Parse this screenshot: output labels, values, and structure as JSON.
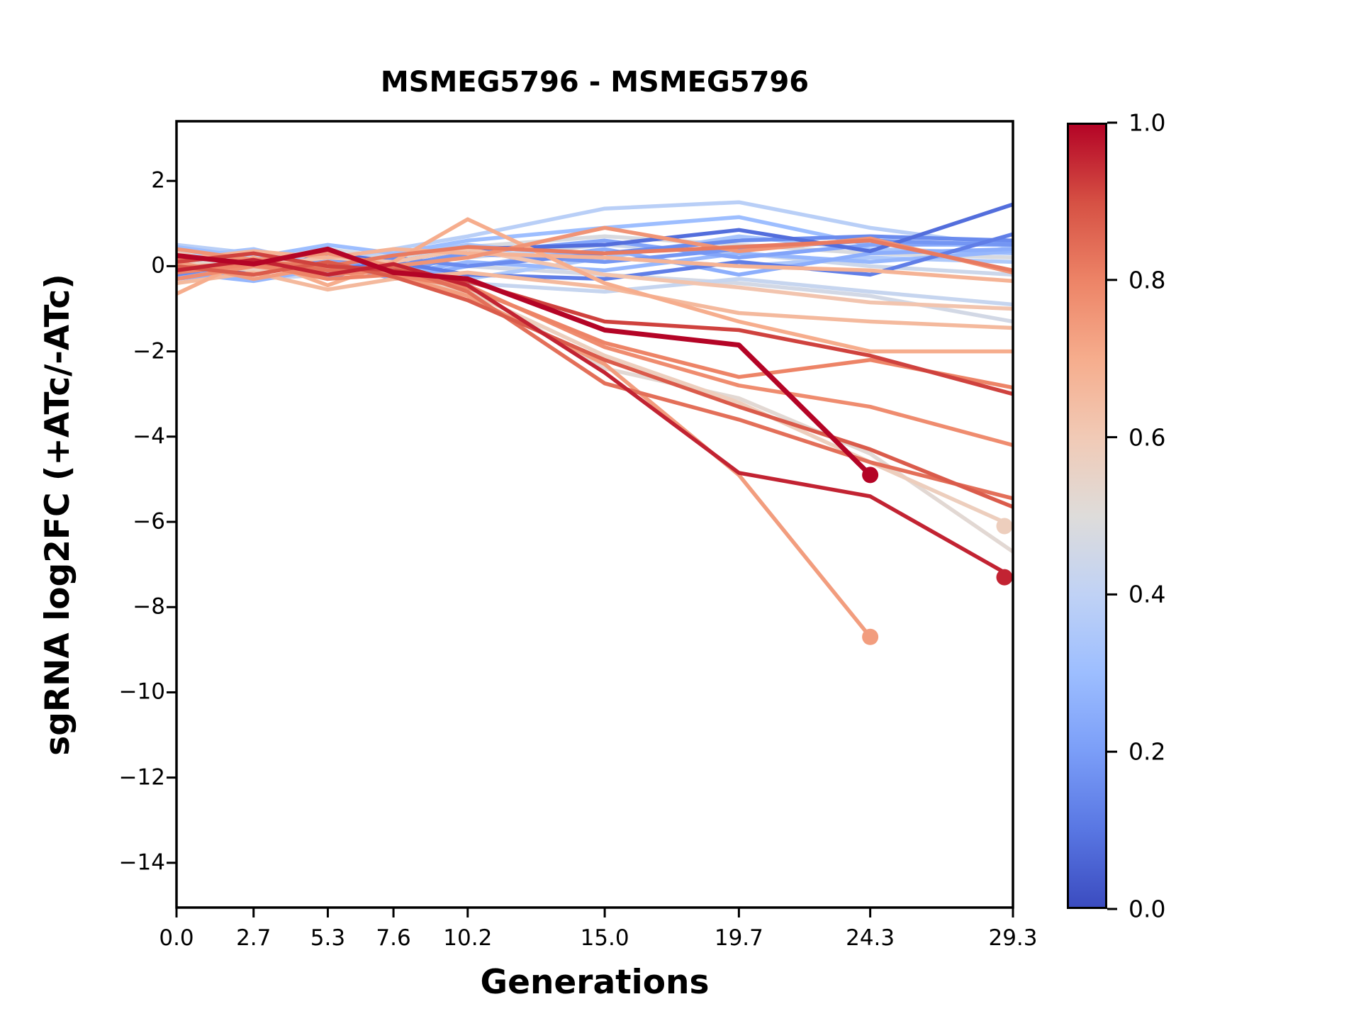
{
  "figure": {
    "title": "MSMEG5796 - MSMEG5796",
    "xlabel": "Generations",
    "ylabel": "sgRNA log2FC (+ATc/-ATc)",
    "background_color": "#ffffff",
    "spine_color": "#000000",
    "text_color": "#000000"
  },
  "chart_data": {
    "type": "line",
    "title": "MSMEG5796 - MSMEG5796",
    "xlabel": "Generations",
    "ylabel": "sgRNA log2FC (+ATc/-ATc)",
    "grid": false,
    "x": [
      0.0,
      2.7,
      5.3,
      7.6,
      10.2,
      15.0,
      19.7,
      24.3,
      29.3
    ],
    "x_tick_labels": [
      "0.0",
      "2.7",
      "5.3",
      "7.6",
      "10.2",
      "15.0",
      "19.7",
      "24.3",
      "29.3"
    ],
    "y_ticks": [
      2,
      0,
      -2,
      -4,
      -6,
      -8,
      -10,
      -12,
      -14
    ],
    "y_tick_labels": [
      "2",
      "0",
      "−2",
      "−4",
      "−6",
      "−8",
      "−10",
      "−12",
      "−14"
    ],
    "xlim": [
      0,
      29.3
    ],
    "ylim": [
      -15.05,
      3.4
    ],
    "legend": "colorbar-right",
    "colorbar": {
      "cmap": "coolwarm",
      "range": [
        0.0,
        1.0
      ],
      "tick_labels": [
        "1.0",
        "0.8",
        "0.6",
        "0.4",
        "0.2",
        "0.0"
      ],
      "tick_values": [
        1.0,
        0.8,
        0.6,
        0.4,
        0.2,
        0.0
      ],
      "gradient_stops_top_to_bottom": [
        "#b40426",
        "#d65144",
        "#ed8467",
        "#f6ad8d",
        "#f1cab6",
        "#dedcda",
        "#c0d2f5",
        "#9dbeff",
        "#7b9ef8",
        "#5977e3",
        "#3b4cc0"
      ]
    },
    "series": [
      {
        "c": 0.48,
        "color": "#d8dadf",
        "marker": false,
        "y": [
          0.05,
          0.25,
          0.4,
          0.2,
          0.45,
          0.7,
          0.5,
          0.3,
          0.2
        ]
      },
      {
        "c": 0.44,
        "color": "#ccd7ea",
        "marker": false,
        "y": [
          0.15,
          0.3,
          0.05,
          0.35,
          0.2,
          0.5,
          0.3,
          0.0,
          -0.2
        ]
      },
      {
        "c": 0.46,
        "color": "#d2d8e5",
        "marker": false,
        "y": [
          0.35,
          0.1,
          0.3,
          0.15,
          0.0,
          -0.2,
          -0.4,
          -0.7,
          -1.3
        ]
      },
      {
        "c": 0.42,
        "color": "#c6d5ef",
        "marker": false,
        "y": [
          -0.1,
          -0.3,
          -0.2,
          0.0,
          -0.4,
          -0.6,
          -0.3,
          -0.6,
          -0.9
        ]
      },
      {
        "c": 0.38,
        "color": "#b9cff7",
        "marker": false,
        "y": [
          0.5,
          0.3,
          0.1,
          0.4,
          0.7,
          1.35,
          1.5,
          0.9,
          0.45
        ]
      },
      {
        "c": 0.35,
        "color": "#aec9fa",
        "marker": false,
        "y": [
          -0.25,
          0.05,
          -0.15,
          0.1,
          -0.3,
          0.2,
          0.0,
          0.2,
          0.1
        ]
      },
      {
        "c": 0.33,
        "color": "#a7c4fc",
        "marker": false,
        "y": [
          0.2,
          0.4,
          0.0,
          0.25,
          0.5,
          0.2,
          0.7,
          0.4,
          0.3
        ]
      },
      {
        "c": 0.3,
        "color": "#9dbeff",
        "marker": false,
        "y": [
          0.45,
          0.2,
          0.5,
          0.3,
          0.6,
          0.9,
          1.15,
          0.5,
          0.5
        ]
      },
      {
        "c": 0.28,
        "color": "#96b7fd",
        "marker": false,
        "y": [
          -0.15,
          -0.35,
          -0.05,
          -0.2,
          0.1,
          -0.1,
          0.3,
          0.1,
          0.35
        ]
      },
      {
        "c": 0.25,
        "color": "#8caefc",
        "marker": false,
        "y": [
          -0.3,
          -0.1,
          0.1,
          -0.3,
          0.0,
          0.4,
          -0.2,
          0.3,
          0.4
        ]
      },
      {
        "c": 0.22,
        "color": "#82a4f9",
        "marker": false,
        "y": [
          0.3,
          0.0,
          0.2,
          -0.2,
          0.3,
          0.6,
          0.2,
          0.5,
          0.55
        ]
      },
      {
        "c": 0.18,
        "color": "#7496f3",
        "marker": false,
        "y": [
          0.1,
          -0.1,
          0.2,
          0.0,
          0.3,
          0.1,
          0.4,
          0.6,
          0.5
        ]
      },
      {
        "c": 0.15,
        "color": "#6a8bee",
        "marker": false,
        "y": [
          -0.2,
          0.1,
          -0.3,
          0.2,
          0.0,
          0.3,
          0.6,
          0.7,
          0.6
        ]
      },
      {
        "c": 0.12,
        "color": "#607ee7",
        "marker": false,
        "y": [
          0.0,
          0.2,
          -0.1,
          0.1,
          -0.2,
          -0.3,
          0.1,
          -0.2,
          0.75
        ]
      },
      {
        "c": 0.08,
        "color": "#536edc",
        "marker": false,
        "y": [
          0.1,
          -0.2,
          0.3,
          0.1,
          0.4,
          0.5,
          0.85,
          0.35,
          1.45
        ]
      },
      {
        "c": 0.52,
        "color": "#e2d8d3",
        "marker": false,
        "y": [
          0.0,
          0.2,
          -0.1,
          -0.1,
          -0.5,
          -2.4,
          -3.1,
          -4.4,
          -6.7
        ]
      },
      {
        "c": 0.58,
        "color": "#edcebd",
        "marker": true,
        "y": [
          0.1,
          -0.1,
          0.0,
          -0.2,
          -0.6,
          -2.1,
          -3.2,
          -4.6,
          -6.1
        ]
      },
      {
        "c": 0.62,
        "color": "#f2c4ae",
        "marker": false,
        "y": [
          0.3,
          0.0,
          0.2,
          0.1,
          0.4,
          -0.2,
          -0.5,
          -0.85,
          -1.0
        ]
      },
      {
        "c": 0.66,
        "color": "#f4b99d",
        "marker": false,
        "y": [
          -0.4,
          -0.15,
          -0.55,
          -0.3,
          -0.15,
          -0.5,
          -1.1,
          -1.3,
          -1.45
        ]
      },
      {
        "c": 0.68,
        "color": "#f5b395",
        "marker": false,
        "y": [
          0.15,
          0.35,
          0.2,
          0.4,
          0.3,
          0.2,
          0.0,
          -0.1,
          -0.35
        ]
      },
      {
        "c": 0.7,
        "color": "#f6ad8d",
        "marker": false,
        "y": [
          -0.65,
          0.2,
          -0.45,
          0.1,
          1.1,
          -0.4,
          -1.3,
          -2.0,
          -2.0
        ]
      },
      {
        "c": 0.74,
        "color": "#f29d7e",
        "marker": true,
        "y": [
          0.1,
          -0.3,
          0.0,
          -0.2,
          -0.7,
          -2.3,
          -4.9,
          -8.7,
          null
        ]
      },
      {
        "c": 0.76,
        "color": "#f09476",
        "marker": false,
        "y": [
          0.4,
          0.15,
          0.3,
          0.0,
          0.2,
          0.9,
          0.35,
          0.65,
          -0.15
        ]
      },
      {
        "c": 0.78,
        "color": "#ef8c6f",
        "marker": false,
        "y": [
          -0.3,
          0.0,
          -0.2,
          -0.1,
          -0.45,
          -1.9,
          -2.8,
          -3.3,
          -4.2
        ]
      },
      {
        "c": 0.8,
        "color": "#ed8467",
        "marker": false,
        "y": [
          -0.15,
          0.05,
          -0.3,
          -0.2,
          -0.5,
          -1.8,
          -2.6,
          -2.2,
          -2.85
        ]
      },
      {
        "c": 0.82,
        "color": "#e87a60",
        "marker": false,
        "y": [
          -0.05,
          0.1,
          0.0,
          0.25,
          0.45,
          0.3,
          0.45,
          0.6,
          -0.1
        ]
      },
      {
        "c": 0.84,
        "color": "#e36f59",
        "marker": false,
        "y": [
          0.2,
          0.1,
          -0.1,
          0.0,
          -0.6,
          -2.75,
          -3.6,
          -4.6,
          -5.45
        ]
      },
      {
        "c": 0.88,
        "color": "#da5b4b",
        "marker": false,
        "y": [
          0.0,
          -0.2,
          0.1,
          -0.25,
          -0.8,
          -2.2,
          -3.3,
          -4.3,
          -5.65
        ]
      },
      {
        "c": 0.92,
        "color": "#cf423e",
        "marker": false,
        "y": [
          0.1,
          0.3,
          0.0,
          -0.1,
          -0.35,
          -1.3,
          -1.5,
          -2.1,
          -3.0
        ]
      },
      {
        "c": 0.96,
        "color": "#c22332",
        "marker": true,
        "y": [
          -0.1,
          0.15,
          -0.2,
          0.05,
          -0.45,
          -2.5,
          -4.85,
          -5.4,
          -7.3
        ]
      },
      {
        "c": 1.0,
        "color": "#b40426",
        "marker": true,
        "lw": 7,
        "y": [
          0.25,
          0.05,
          0.4,
          -0.15,
          -0.3,
          -1.5,
          -1.85,
          -4.9,
          null
        ]
      }
    ]
  }
}
